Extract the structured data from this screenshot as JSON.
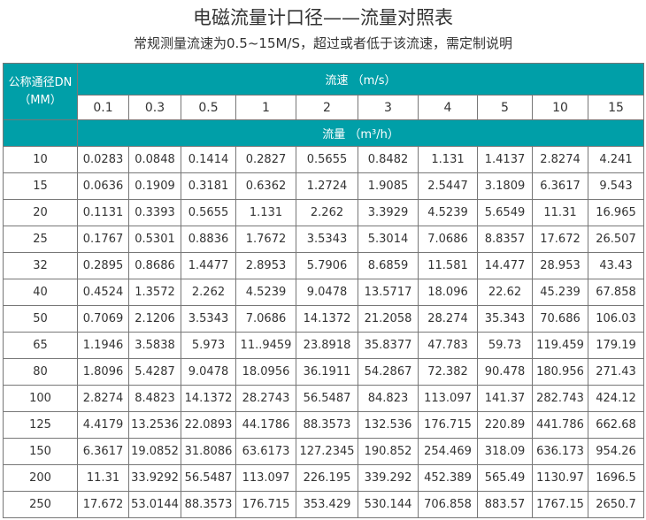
{
  "title": "电磁流量计口径——流量对照表",
  "subtitle": "常规测量流速为0.5~15M/S，超过或者低于该流速，需定制说明",
  "header": {
    "dn_label": "公称通径DN",
    "dn_unit": "（MM）",
    "velocity_label": "流速 （m/s）",
    "flow_label": "流量 （m³/h）"
  },
  "velocities": [
    "0.1",
    "0.3",
    "0.5",
    "1",
    "2",
    "3",
    "4",
    "5",
    "10",
    "15"
  ],
  "rows": [
    {
      "dn": "10",
      "values": [
        "0.0283",
        "0.0848",
        "0.1414",
        "0.2827",
        "0.5655",
        "0.8482",
        "1.131",
        "1.4137",
        "2.8274",
        "4.241"
      ]
    },
    {
      "dn": "15",
      "values": [
        "0.0636",
        "0.1909",
        "0.3181",
        "0.6362",
        "1.2724",
        "1.9085",
        "2.5447",
        "3.1809",
        "6.3617",
        "9.543"
      ]
    },
    {
      "dn": "20",
      "values": [
        "0.1131",
        "0.3393",
        "0.5655",
        "1.131",
        "2.262",
        "3.3929",
        "4.5239",
        "5.6549",
        "11.31",
        "16.965"
      ]
    },
    {
      "dn": "25",
      "values": [
        "0.1767",
        "0.5301",
        "0.8836",
        "1.7672",
        "3.5343",
        "5.3014",
        "7.0686",
        "8.8357",
        "17.672",
        "26.507"
      ]
    },
    {
      "dn": "32",
      "values": [
        "0.2895",
        "0.8686",
        "1.4477",
        "2.8953",
        "5.7906",
        "8.6859",
        "11.581",
        "14.477",
        "28.953",
        "43.43"
      ]
    },
    {
      "dn": "40",
      "values": [
        "0.4524",
        "1.3572",
        "2.262",
        "4.5239",
        "9.0478",
        "13.5717",
        "18.096",
        "22.62",
        "45.239",
        "67.858"
      ]
    },
    {
      "dn": "50",
      "values": [
        "0.7069",
        "2.1206",
        "3.5343",
        "7.0686",
        "14.1372",
        "21.2058",
        "28.274",
        "35.343",
        "70.686",
        "106.03"
      ]
    },
    {
      "dn": "65",
      "values": [
        "1.1946",
        "3.5838",
        "5.973",
        "11..9459",
        "23.8918",
        "35.8377",
        "47.783",
        "59.73",
        "119.459",
        "179.19"
      ]
    },
    {
      "dn": "80",
      "values": [
        "1.8096",
        "5.4287",
        "9.0478",
        "18.0956",
        "36.1911",
        "54.2867",
        "72.382",
        "90.478",
        "180.956",
        "271.43"
      ]
    },
    {
      "dn": "100",
      "values": [
        "2.8274",
        "8.4823",
        "14.1372",
        "28.2743",
        "56.5487",
        "84.823",
        "113.097",
        "141.37",
        "282.743",
        "424.12"
      ]
    },
    {
      "dn": "125",
      "values": [
        "4.4179",
        "13.2536",
        "22.0893",
        "44.1786",
        "88.3573",
        "132.536",
        "176.715",
        "220.89",
        "441.786",
        "662.68"
      ]
    },
    {
      "dn": "150",
      "values": [
        "6.3617",
        "19.0852",
        "31.8086",
        "63.6173",
        "127.2345",
        "190.852",
        "254.469",
        "318.09",
        "636.173",
        "954.26"
      ]
    },
    {
      "dn": "200",
      "values": [
        "11.31",
        "33.9292",
        "56.5487",
        "113.097",
        "226.195",
        "339.292",
        "452.389",
        "565.49",
        "1130.97",
        "1696.5"
      ]
    },
    {
      "dn": "250",
      "values": [
        "17.672",
        "53.0144",
        "88.3573",
        "176.715",
        "353.429",
        "530.144",
        "706.858",
        "883.57",
        "1767.15",
        "2650.7"
      ]
    }
  ],
  "colors": {
    "header": "#009fa8",
    "border": "#777777"
  }
}
